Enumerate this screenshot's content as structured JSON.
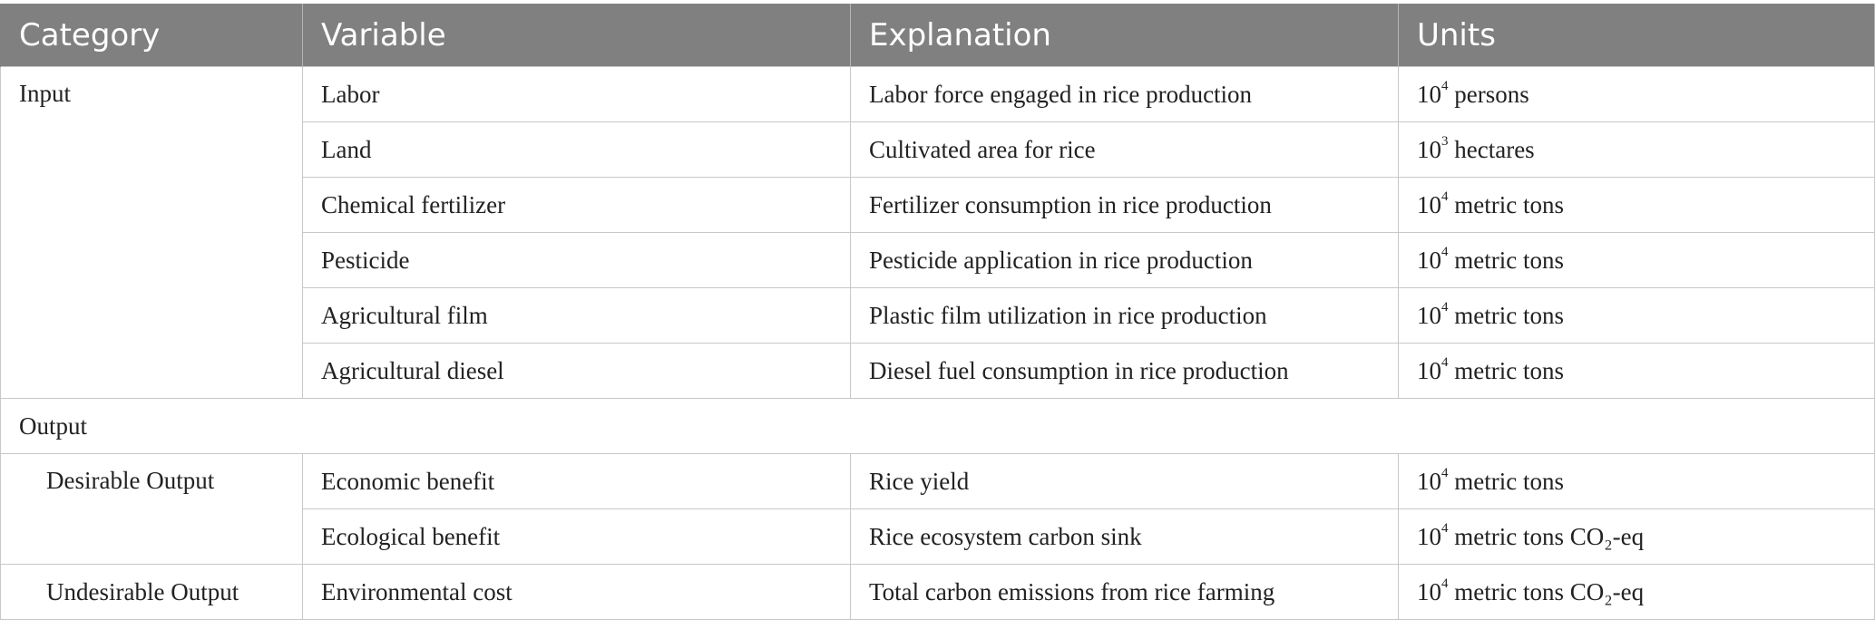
{
  "table": {
    "headers": [
      "Category",
      "Variable",
      "Explanation",
      "Units"
    ],
    "sections": {
      "input": "Input",
      "output": "Output",
      "desirable": "Desirable Output",
      "undesirable": "Undesirable Output"
    },
    "rows": [
      {
        "variable": "Labor",
        "explanation": "Labor force engaged in rice production",
        "unit_base": "10",
        "unit_exp": "4",
        "unit_text": " persons"
      },
      {
        "variable": "Land",
        "explanation": "Cultivated area for rice",
        "unit_base": "10",
        "unit_exp": "3",
        "unit_text": " hectares"
      },
      {
        "variable": "Chemical fertilizer",
        "explanation": "Fertilizer consumption in rice production",
        "unit_base": "10",
        "unit_exp": "4",
        "unit_text": " metric tons"
      },
      {
        "variable": "Pesticide",
        "explanation": "Pesticide application in rice production",
        "unit_base": "10",
        "unit_exp": "4",
        "unit_text": " metric tons"
      },
      {
        "variable": "Agricultural film",
        "explanation": "Plastic film utilization in rice production",
        "unit_base": "10",
        "unit_exp": "4",
        "unit_text": " metric tons"
      },
      {
        "variable": "Agricultural diesel",
        "explanation": "Diesel fuel consumption in rice production",
        "unit_base": "10",
        "unit_exp": "4",
        "unit_text": " metric tons"
      },
      {
        "variable": "Economic benefit",
        "explanation": "Rice yield",
        "unit_base": "10",
        "unit_exp": "4",
        "unit_text": " metric tons"
      },
      {
        "variable": "Ecological benefit",
        "explanation": "Rice ecosystem carbon sink",
        "unit_base": "10",
        "unit_exp": "4",
        "unit_text": " metric tons CO₂-eq"
      },
      {
        "variable": "Environmental cost",
        "explanation": "Total carbon emissions from rice farming",
        "unit_base": "10",
        "unit_exp": "4",
        "unit_text": " metric tons CO₂-eq"
      }
    ]
  }
}
